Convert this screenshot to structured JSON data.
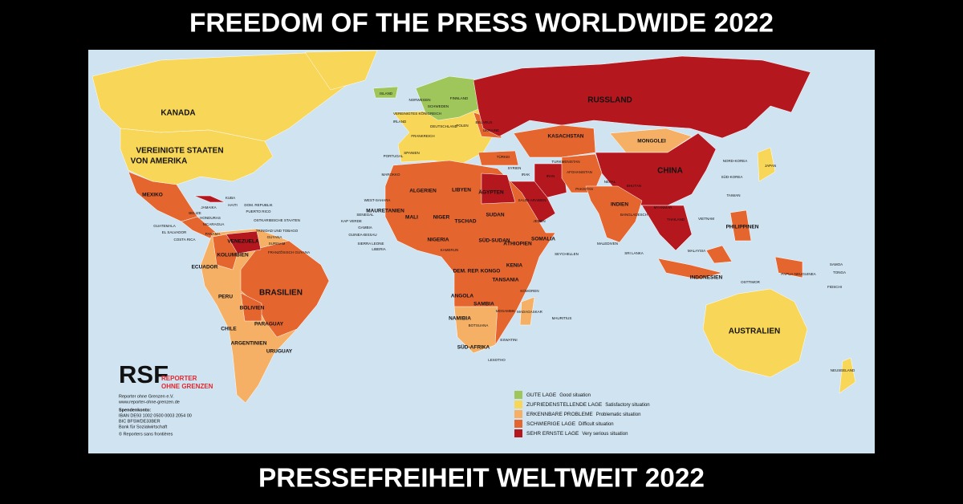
{
  "header": {
    "title": "FREEDOM OF THE PRESS WORLDWIDE 2022"
  },
  "footer": {
    "title": "PRESSEFREIHEIT WELTWEIT 2022"
  },
  "map": {
    "labels": [
      "KANADA",
      "VEREINIGTE STAATEN",
      "VON AMERIKA",
      "MEXIKO",
      "KUBA",
      "HAITI",
      "DOM. REPUBLIK",
      "PUERTO RICO",
      "JAMAIKA",
      "BELIZE",
      "HONDURAS",
      "GUATEMALA",
      "NICARAGUA",
      "EL SALVADOR",
      "COSTA RICA",
      "PANAMA",
      "OSTKARIBISCHE STAATEN",
      "TRINIDAD UND TOBAGO",
      "GUYANA",
      "SURINAM",
      "FRANZÖSISCH GUYANA",
      "VENEZUELA",
      "KOLUMBIEN",
      "ECUADOR",
      "PERU",
      "BRASILIEN",
      "BOLIVIEN",
      "PARAGUAY",
      "CHILE",
      "ARGENTINIEN",
      "URUGUAY",
      "ISLAND",
      "NORWEGEN",
      "SCHWEDEN",
      "FINNLAND",
      "VEREINIGTES KÖNIGREICH",
      "IRLAND",
      "DEUTSCHLAND",
      "POLEN",
      "BELARUS",
      "UKRAINE",
      "FRANKREICH",
      "SPANIEN",
      "PORTUGAL",
      "RUSSLAND",
      "KASACHSTAN",
      "MONGOLEI",
      "TÜRKEI",
      "SYRIEN",
      "IRAK",
      "IRAN",
      "AFGHANISTAN",
      "TURKMENISTAN",
      "PAKISTAN",
      "CHINA",
      "NORD-KOREA",
      "SÜD-KOREA",
      "JAPAN",
      "TAIWAN",
      "INDIEN",
      "NEPAL",
      "BHUTAN",
      "BANGLADESCH",
      "MYANMAR",
      "THAILAND",
      "VIETNAM",
      "PHILIPPINEN",
      "MALAYSIA",
      "SRI LANKA",
      "MALEDIVEN",
      "INDONESIEN",
      "OSTTIMOR",
      "PAPUA-NEUGUINEA",
      "AUSTRALIEN",
      "NEUSEELAND",
      "SAMOA",
      "TONGA",
      "FIDSCHI",
      "MAROKKO",
      "WEST-SAHARA",
      "ALGERIEN",
      "LIBYEN",
      "ÄGYPTEN",
      "SAUDI-ARABIEN",
      "JEMEN",
      "MAURETANIEN",
      "MALI",
      "NIGER",
      "TSCHAD",
      "SUDAN",
      "KAP VERDE",
      "SENEGAL",
      "GAMBIA",
      "GUINEA-BISSAU",
      "SIERRA LEONE",
      "LIBERIA",
      "NIGERIA",
      "SÜD-SUDAN",
      "ÄTHIOPIEN",
      "SOMALIA",
      "KENIA",
      "KAMERUN",
      "DEM. REP. KONGO",
      "TANSANIA",
      "ANGOLA",
      "SAMBIA",
      "NAMIBIA",
      "BOTSUANA",
      "SÜD-AFRIKA",
      "MADAGASKAR",
      "MOSAMBIK",
      "KOMOREN",
      "MAURITIUS",
      "SEYCHELLEN",
      "LESOTHO",
      "ESWATINI"
    ]
  },
  "legend": {
    "items": [
      {
        "label": "GUTE LAGE",
        "description": "Good situation",
        "color": "#9fc65a"
      },
      {
        "label": "ZUFRIEDENSTELLENDE LAGE",
        "description": "Satisfactory situation",
        "color": "#f8d657"
      },
      {
        "label": "ERKENNBARE PROBLEME",
        "description": "Problematic situation",
        "color": "#f5b066"
      },
      {
        "label": "SCHWIERIGE LAGE",
        "description": "Difficult situation",
        "color": "#e5652f"
      },
      {
        "label": "SEHR ERNSTE LAGE",
        "description": "Very serious situation",
        "color": "#b5171f"
      }
    ]
  },
  "logo": {
    "mark": "RSF",
    "line1": "REPORTER",
    "line2": "OHNE GRENZEN"
  },
  "imprint": {
    "lines": [
      "Reporter ohne Grenzen e.V.",
      "www.reporter-ohne-grenzen.de",
      "Spendenkonto:",
      "IBAN DE93 1002 0500 0003 2054 00",
      "BIC BFSWDE33BER",
      "Bank für Sozialwirtschaft",
      "© Reporters sans frontières"
    ]
  }
}
